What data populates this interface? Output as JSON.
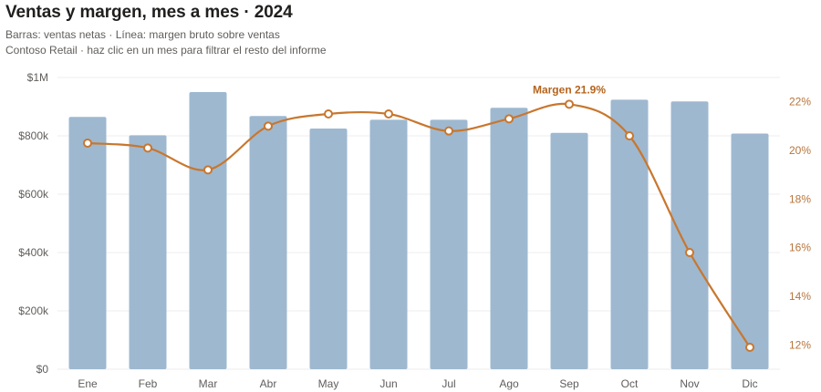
{
  "header": {
    "title": "Ventas y margen, mes a mes · 2024",
    "subtitle": "Barras: ventas netas · Línea: margen bruto sobre ventas",
    "note": "Contoso Retail · haz clic en un mes para filtrar el resto del informe"
  },
  "colors": {
    "bars": "#9eb8d0",
    "line": "#c8772e",
    "right_axis_text": "#b8743a",
    "callout": "#b5641d"
  },
  "chart_data": {
    "type": "bar",
    "combo": "bar + line (dual axis)",
    "categories": [
      "Ene",
      "Feb",
      "Mar",
      "Abr",
      "May",
      "Jun",
      "Jul",
      "Ago",
      "Sep",
      "Oct",
      "Nov",
      "Dic"
    ],
    "bars": {
      "values": [
        865000,
        802000,
        950000,
        868000,
        825000,
        855000,
        855000,
        896000,
        810000,
        924000,
        918000,
        808000
      ],
      "axis": "left",
      "ylim": [
        0,
        1000000
      ],
      "ticks": [
        "$0",
        "$200k",
        "$400k",
        "$600k",
        "$800k",
        "$1M"
      ],
      "tick_values": [
        0,
        200000,
        400000,
        600000,
        800000,
        1000000
      ]
    },
    "line": {
      "values": [
        20.3,
        20.1,
        19.2,
        21.0,
        21.5,
        21.5,
        20.8,
        21.3,
        21.9,
        20.6,
        15.8,
        11.9
      ],
      "axis": "right",
      "ylim": [
        11.0,
        23.0
      ],
      "ticks": [
        "12%",
        "14%",
        "16%",
        "18%",
        "20%",
        "22%"
      ],
      "tick_values": [
        12,
        14,
        16,
        18,
        20,
        22
      ]
    },
    "annotation": {
      "category": "Sep",
      "text": "Margen 21.9%"
    },
    "grid": true
  }
}
